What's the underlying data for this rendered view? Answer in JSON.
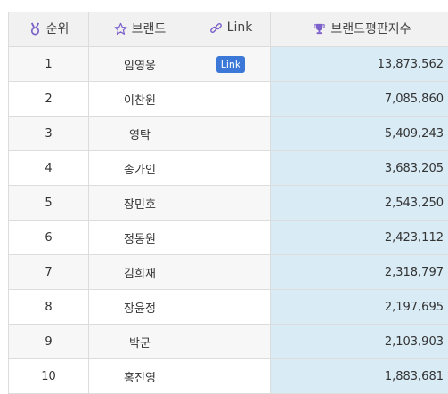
{
  "header": {
    "rank_label": "순위",
    "brand_label": "브랜드",
    "link_label": "Link",
    "index_label": "브랜드평판지수",
    "rank_icon": "medal-icon",
    "brand_icon": "star-icon",
    "link_icon": "chain-link-icon",
    "index_icon": "trophy-icon"
  },
  "colors": {
    "icon_purple": "#7b61c9",
    "link_button": "#3b78d8",
    "index_bg": "#d9ebf5"
  },
  "rows": [
    {
      "rank": "1",
      "brand": "임영웅",
      "link": "Link",
      "index": "13,873,562"
    },
    {
      "rank": "2",
      "brand": "이찬원",
      "link": "",
      "index": "7,085,860"
    },
    {
      "rank": "3",
      "brand": "영탁",
      "link": "",
      "index": "5,409,243"
    },
    {
      "rank": "4",
      "brand": "송가인",
      "link": "",
      "index": "3,683,205"
    },
    {
      "rank": "5",
      "brand": "장민호",
      "link": "",
      "index": "2,543,250"
    },
    {
      "rank": "6",
      "brand": "정동원",
      "link": "",
      "index": "2,423,112"
    },
    {
      "rank": "7",
      "brand": "김희재",
      "link": "",
      "index": "2,318,797"
    },
    {
      "rank": "8",
      "brand": "장윤정",
      "link": "",
      "index": "2,197,695"
    },
    {
      "rank": "9",
      "brand": "박군",
      "link": "",
      "index": "2,103,903"
    },
    {
      "rank": "10",
      "brand": "홍진영",
      "link": "",
      "index": "1,883,681"
    }
  ]
}
